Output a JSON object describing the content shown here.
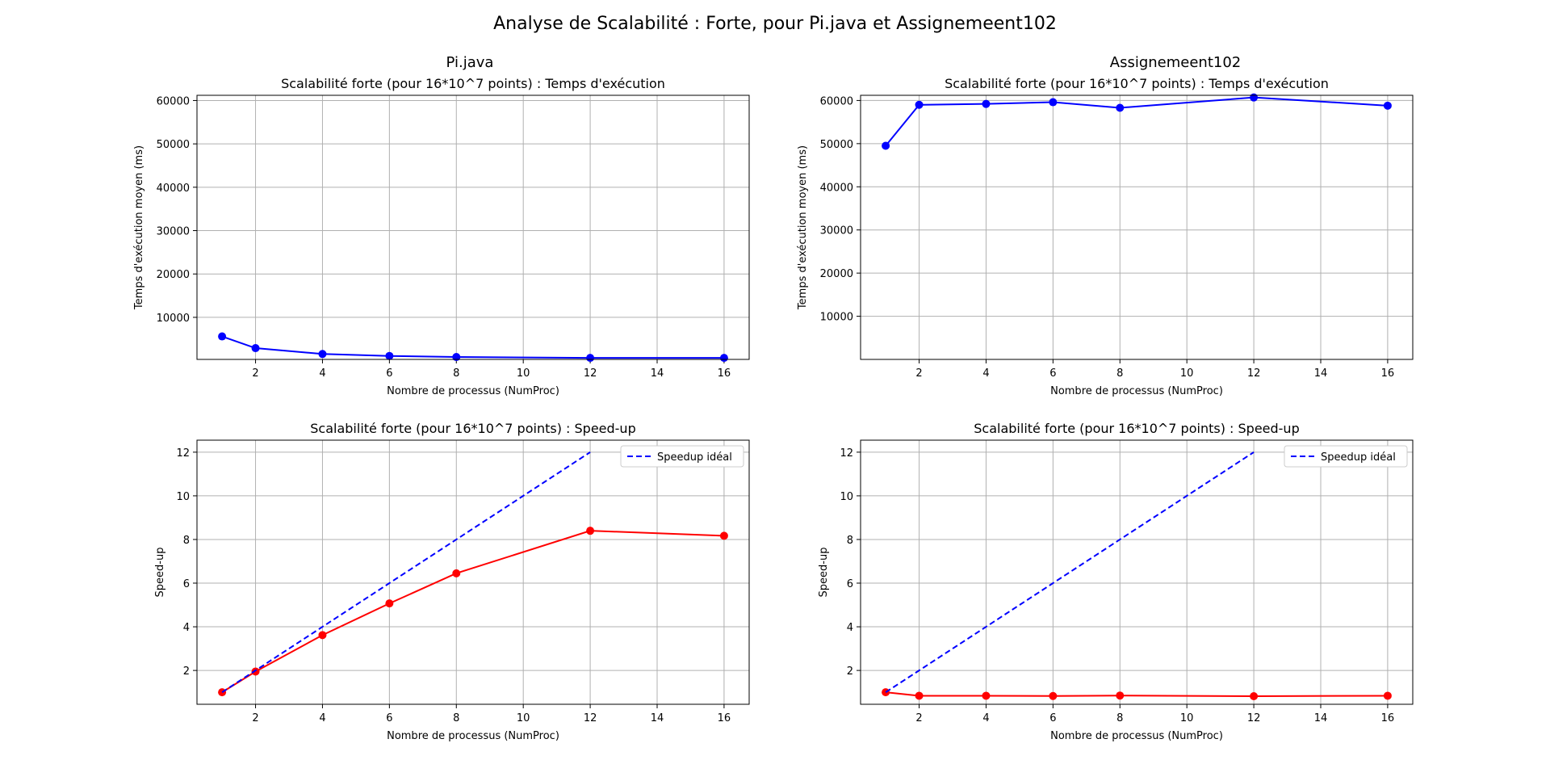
{
  "figure": {
    "suptitle": "Analyse de Scalabilité : Forte, pour Pi.java et Assignemeent102",
    "column_titles": [
      "Pi.java",
      "Assignemeent102"
    ]
  },
  "colors": {
    "time_line": "#0000ff",
    "speedup_line": "#ff0000",
    "ideal_line": "#0000ff",
    "grid": "#b0b0b0"
  },
  "chart_data": [
    {
      "type": "line",
      "title": "Scalabilité forte (pour 16*10^7 points) : Temps d'exécution",
      "xlabel": "Nombre de processus (NumProc)",
      "ylabel": "Temps d'exécution moyen (ms)",
      "xlim": [
        0.25,
        16.75
      ],
      "ylim": [
        300,
        61200
      ],
      "xticks": [
        2,
        4,
        6,
        8,
        10,
        12,
        14,
        16
      ],
      "yticks": [
        10000,
        20000,
        30000,
        40000,
        50000,
        60000
      ],
      "grid": true,
      "legend": null,
      "series": [
        {
          "style": "time",
          "x": [
            1,
            2,
            4,
            6,
            8,
            12,
            16
          ],
          "y": [
            5600,
            2900,
            1550,
            1100,
            850,
            650,
            650
          ]
        }
      ]
    },
    {
      "type": "line",
      "title": "Scalabilité forte (pour 16*10^7 points) : Temps d'exécution",
      "xlabel": "Nombre de processus (NumProc)",
      "ylabel": "Temps d'exécution moyen (ms)",
      "xlim": [
        0.25,
        16.75
      ],
      "ylim": [
        0,
        61200
      ],
      "xticks": [
        2,
        4,
        6,
        8,
        10,
        12,
        14,
        16
      ],
      "yticks": [
        10000,
        20000,
        30000,
        40000,
        50000,
        60000
      ],
      "grid": true,
      "legend": null,
      "series": [
        {
          "style": "time",
          "x": [
            1,
            2,
            4,
            6,
            8,
            12,
            16
          ],
          "y": [
            49500,
            59000,
            59200,
            59600,
            58300,
            60700,
            58800
          ]
        }
      ]
    },
    {
      "type": "line",
      "title": "Scalabilité forte (pour 16*10^7 points) : Speed-up",
      "xlabel": "Nombre de processus (NumProc)",
      "ylabel": "Speed-up",
      "xlim": [
        0.25,
        16.75
      ],
      "ylim": [
        0.45,
        12.55
      ],
      "xticks": [
        2,
        4,
        6,
        8,
        10,
        12,
        14,
        16
      ],
      "yticks": [
        2,
        4,
        6,
        8,
        10,
        12
      ],
      "grid": true,
      "legend": "upper right",
      "series": [
        {
          "style": "speedup",
          "x": [
            1,
            2,
            4,
            6,
            8,
            12,
            16
          ],
          "y": [
            1.0,
            1.95,
            3.62,
            5.07,
            6.45,
            8.4,
            8.17
          ]
        },
        {
          "style": "ideal",
          "name": "Speedup idéal",
          "x": [
            1,
            2,
            4,
            6,
            8,
            12
          ],
          "y": [
            1,
            2,
            4,
            6,
            8,
            12
          ]
        }
      ]
    },
    {
      "type": "line",
      "title": "Scalabilité forte (pour 16*10^7 points) : Speed-up",
      "xlabel": "Nombre de processus (NumProc)",
      "ylabel": "Speed-up",
      "xlim": [
        0.25,
        16.75
      ],
      "ylim": [
        0.45,
        12.55
      ],
      "xticks": [
        2,
        4,
        6,
        8,
        10,
        12,
        14,
        16
      ],
      "yticks": [
        2,
        4,
        6,
        8,
        10,
        12
      ],
      "grid": true,
      "legend": "upper right",
      "series": [
        {
          "style": "speedup",
          "x": [
            1,
            2,
            4,
            6,
            8,
            12,
            16
          ],
          "y": [
            1.0,
            0.84,
            0.84,
            0.83,
            0.85,
            0.82,
            0.84
          ]
        },
        {
          "style": "ideal",
          "name": "Speedup idéal",
          "x": [
            1,
            2,
            4,
            6,
            8,
            12
          ],
          "y": [
            1,
            2,
            4,
            6,
            8,
            12
          ]
        }
      ]
    }
  ]
}
